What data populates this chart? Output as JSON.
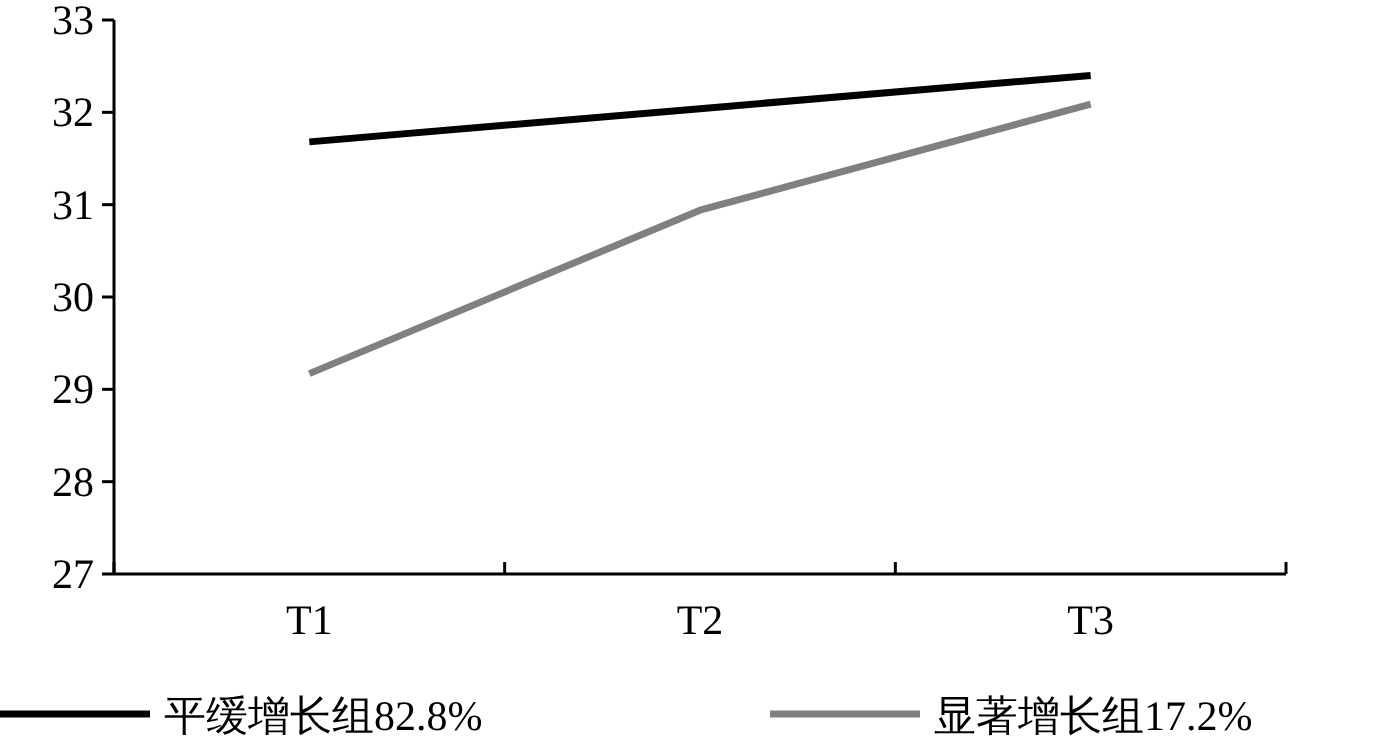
{
  "chart_data": {
    "type": "line",
    "categories": [
      "T1",
      "T2",
      "T3"
    ],
    "series": [
      {
        "name": "平缓增长组82.8%",
        "color": "#000000",
        "values": [
          31.68,
          32.04,
          32.4
        ]
      },
      {
        "name": "显著增长组17.2%",
        "color": "#808080",
        "values": [
          29.17,
          30.94,
          32.09
        ]
      }
    ],
    "ylim": [
      27,
      33
    ],
    "yticks": [
      27,
      28,
      29,
      30,
      31,
      32,
      33
    ],
    "legend": "bottom",
    "grid": false,
    "marker": "none",
    "line_style": "solid"
  }
}
